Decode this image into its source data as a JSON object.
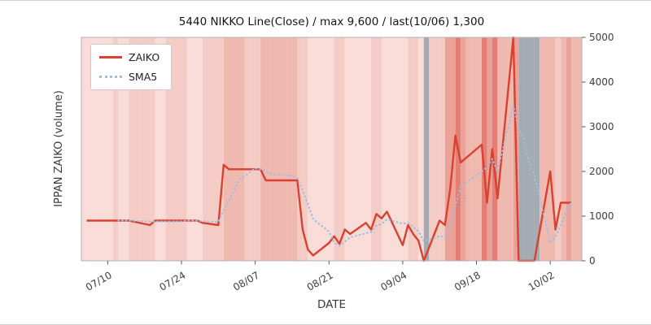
{
  "chart_data": {
    "type": "line",
    "title": "5440 NIKKO Line(Close) / max 9,600 / last(10/06) 1,300",
    "xlabel": "DATE",
    "ylabel": "IPPAN ZAIKO (volume)",
    "ylim": [
      0,
      5000
    ],
    "y_ticks": [
      0,
      1000,
      2000,
      3000,
      4000,
      5000
    ],
    "y_axis_side": "right",
    "x_ticks": [
      "07/10",
      "07/24",
      "08/07",
      "08/21",
      "09/04",
      "09/18",
      "10/02"
    ],
    "x_range": [
      "07/05",
      "10/08"
    ],
    "legend_position": "upper-left",
    "grid": false,
    "series": [
      {
        "name": "ZAIKO",
        "color": "#d9402e",
        "style": "solid",
        "x": [
          "07/06",
          "07/07",
          "07/10",
          "07/11",
          "07/12",
          "07/13",
          "07/14",
          "07/18",
          "07/19",
          "07/20",
          "07/21",
          "07/24",
          "07/25",
          "07/26",
          "07/27",
          "07/28",
          "07/31",
          "08/01",
          "08/02",
          "08/03",
          "08/04",
          "08/07",
          "08/08",
          "08/09",
          "08/10",
          "08/14",
          "08/15",
          "08/16",
          "08/17",
          "08/18",
          "08/21",
          "08/22",
          "08/23",
          "08/24",
          "08/25",
          "08/28",
          "08/29",
          "08/30",
          "08/31",
          "09/01",
          "09/04",
          "09/05",
          "09/06",
          "09/07",
          "09/08",
          "09/11",
          "09/12",
          "09/13",
          "09/14",
          "09/15",
          "09/19",
          "09/20",
          "09/21",
          "09/22",
          "09/25",
          "09/26",
          "09/27",
          "09/28",
          "09/29",
          "10/02",
          "10/03",
          "10/04",
          "10/05",
          "10/06"
        ],
        "y": [
          900,
          900,
          900,
          900,
          900,
          900,
          900,
          800,
          900,
          900,
          900,
          900,
          900,
          900,
          900,
          850,
          800,
          2150,
          2050,
          2050,
          2050,
          2050,
          2050,
          1800,
          1800,
          1800,
          1800,
          700,
          250,
          120,
          400,
          550,
          380,
          700,
          600,
          850,
          700,
          1050,
          950,
          1100,
          350,
          800,
          600,
          450,
          0,
          900,
          800,
          1600,
          2800,
          2200,
          2600,
          1300,
          2500,
          1400,
          9600,
          0,
          0,
          0,
          0,
          2000,
          700,
          1300,
          1300,
          1300
        ]
      },
      {
        "name": "SMA5",
        "color": "#9fbfdf",
        "style": "dotted",
        "derived_from": "ZAIKO",
        "window": 5
      }
    ],
    "palette": {
      "pink_light": "#f9dcd7",
      "pink": "#f5ccc5",
      "pink_med": "#f0b9b0",
      "red": "#eba198",
      "red_dark": "#e47d73",
      "gray": "#a5abb3"
    },
    "bands": [
      {
        "from": "07/05",
        "to": "07/11",
        "color": "pink_light"
      },
      {
        "from": "07/11",
        "to": "07/12",
        "color": "pink"
      },
      {
        "from": "07/12",
        "to": "07/14",
        "color": "pink_light"
      },
      {
        "from": "07/14",
        "to": "07/19",
        "color": "pink"
      },
      {
        "from": "07/19",
        "to": "07/21",
        "color": "pink_light"
      },
      {
        "from": "07/21",
        "to": "07/25",
        "color": "pink"
      },
      {
        "from": "07/25",
        "to": "07/28",
        "color": "pink_light"
      },
      {
        "from": "07/28",
        "to": "08/01",
        "color": "pink"
      },
      {
        "from": "08/01",
        "to": "08/05",
        "color": "pink_med"
      },
      {
        "from": "08/05",
        "to": "08/08",
        "color": "pink"
      },
      {
        "from": "08/08",
        "to": "08/15",
        "color": "pink_med"
      },
      {
        "from": "08/15",
        "to": "08/17",
        "color": "pink"
      },
      {
        "from": "08/17",
        "to": "08/22",
        "color": "pink_light"
      },
      {
        "from": "08/22",
        "to": "08/24",
        "color": "pink"
      },
      {
        "from": "08/24",
        "to": "08/29",
        "color": "pink_light"
      },
      {
        "from": "08/29",
        "to": "08/31",
        "color": "pink"
      },
      {
        "from": "08/31",
        "to": "09/05",
        "color": "pink_light"
      },
      {
        "from": "09/05",
        "to": "09/07",
        "color": "pink"
      },
      {
        "from": "09/07",
        "to": "09/08",
        "color": "pink_light"
      },
      {
        "from": "09/08",
        "to": "09/09",
        "color": "gray"
      },
      {
        "from": "09/09",
        "to": "09/12",
        "color": "pink"
      },
      {
        "from": "09/12",
        "to": "09/14",
        "color": "red"
      },
      {
        "from": "09/14",
        "to": "09/15",
        "color": "red_dark"
      },
      {
        "from": "09/15",
        "to": "09/16",
        "color": "red"
      },
      {
        "from": "09/16",
        "to": "09/19",
        "color": "pink_med"
      },
      {
        "from": "09/19",
        "to": "09/20",
        "color": "red_dark"
      },
      {
        "from": "09/20",
        "to": "09/21",
        "color": "red"
      },
      {
        "from": "09/21",
        "to": "09/22",
        "color": "red_dark"
      },
      {
        "from": "09/22",
        "to": "09/25",
        "color": "pink_med"
      },
      {
        "from": "09/25",
        "to": "09/26",
        "color": "red"
      },
      {
        "from": "09/26",
        "to": "09/30",
        "color": "gray"
      },
      {
        "from": "09/30",
        "to": "10/03",
        "color": "pink_med"
      },
      {
        "from": "10/03",
        "to": "10/04",
        "color": "pink"
      },
      {
        "from": "10/04",
        "to": "10/05",
        "color": "pink_med"
      },
      {
        "from": "10/05",
        "to": "10/06",
        "color": "red"
      },
      {
        "from": "10/06",
        "to": "10/08",
        "color": "pink_med"
      }
    ]
  }
}
